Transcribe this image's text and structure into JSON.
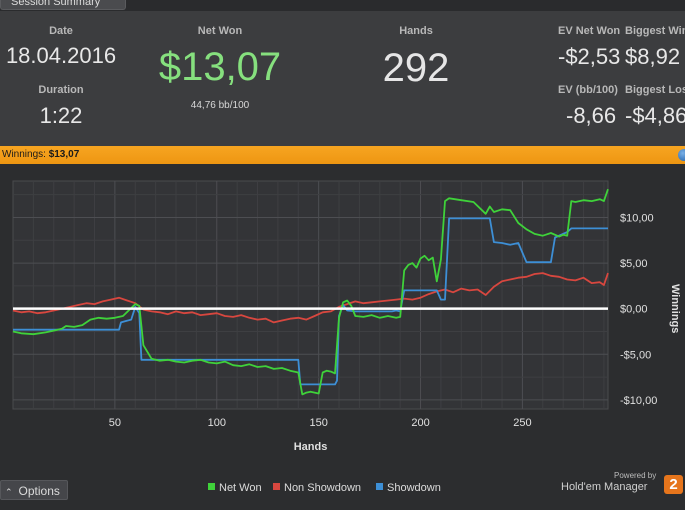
{
  "tab": {
    "label": "Session Summary"
  },
  "summary": {
    "date_label": "Date",
    "date_value": "18.04.2016",
    "duration_label": "Duration",
    "duration_value": "1:22",
    "netwon_label": "Net Won",
    "netwon_value": "$13,07",
    "netwon_sub": "44,76 bb/100",
    "hands_label": "Hands",
    "hands_value": "292",
    "ev_netwon_label": "EV Net Won",
    "ev_netwon_value": "-$2,53",
    "biggest_win_label": "Biggest Win",
    "biggest_win_value": "$8,92",
    "ev_bb_label": "EV (bb/100)",
    "ev_bb_value": "-8,66",
    "biggest_loss_label": "Biggest Loss",
    "biggest_loss_value": "-$4,86"
  },
  "winbar": {
    "label": "Winnings:",
    "value": "$13,07"
  },
  "colors": {
    "net_won": "#3fd23a",
    "non_showdown": "#d8473f",
    "showdown": "#3d8fd6",
    "accent": "#f5a01c"
  },
  "chart_data": {
    "type": "line",
    "xlabel": "Hands",
    "ylabel": "Winnings",
    "xlim": [
      0,
      292
    ],
    "ylim": [
      -11,
      14
    ],
    "x_ticks": [
      "50",
      "100",
      "150",
      "200",
      "250"
    ],
    "y_ticks": [
      "$10,00",
      "$5,00",
      "$0,00",
      "-$5,00",
      "-$10,00"
    ],
    "grid": true,
    "legend_position": "bottom-center",
    "series": [
      {
        "name": "Net Won",
        "x": [
          0,
          4,
          10,
          16,
          20,
          24,
          26,
          30,
          34,
          38,
          42,
          46,
          50,
          54,
          60,
          62,
          64,
          68,
          72,
          76,
          80,
          84,
          88,
          92,
          96,
          100,
          104,
          108,
          112,
          116,
          120,
          124,
          128,
          132,
          136,
          138,
          140,
          142,
          144,
          146,
          150,
          152,
          154,
          156,
          158,
          160,
          162,
          164,
          166,
          168,
          172,
          176,
          180,
          184,
          188,
          190,
          192,
          194,
          196,
          198,
          200,
          202,
          204,
          206,
          208,
          210,
          212,
          214,
          220,
          226,
          232,
          234,
          236,
          240,
          244,
          248,
          252,
          256,
          260,
          264,
          268,
          270,
          272,
          274,
          276,
          280,
          284,
          288,
          290,
          292
        ],
        "y": [
          -2.5,
          -2.7,
          -2.8,
          -2.6,
          -2.4,
          -2.2,
          -1.9,
          -2.0,
          -1.8,
          -1.2,
          -1.0,
          -1.1,
          -1.0,
          -0.8,
          0.5,
          0.3,
          -4.0,
          -5.5,
          -5.7,
          -5.6,
          -5.8,
          -5.9,
          -5.7,
          -5.6,
          -5.9,
          -6.0,
          -5.8,
          -6.2,
          -6.3,
          -6.1,
          -6.4,
          -6.3,
          -6.6,
          -6.5,
          -6.8,
          -6.9,
          -7.0,
          -9.4,
          -9.2,
          -9.1,
          -9.3,
          -7.0,
          -6.8,
          -6.9,
          -7.1,
          -1.0,
          0.7,
          0.9,
          0.3,
          -0.8,
          -0.9,
          -0.7,
          -1.0,
          -0.8,
          -1.0,
          -0.9,
          4.2,
          4.8,
          5.0,
          4.5,
          5.5,
          5.8,
          5.3,
          5.6,
          3.0,
          5.4,
          11.8,
          12.1,
          11.9,
          11.7,
          10.4,
          11.2,
          10.6,
          10.9,
          10.8,
          9.4,
          8.7,
          8.2,
          8.0,
          8.3,
          7.9,
          8.1,
          8.0,
          11.8,
          11.7,
          11.9,
          11.8,
          12.0,
          11.8,
          13.1
        ]
      },
      {
        "name": "Non Showdown",
        "x": [
          0,
          4,
          8,
          12,
          16,
          20,
          24,
          28,
          32,
          36,
          40,
          44,
          48,
          52,
          56,
          60,
          64,
          68,
          72,
          76,
          80,
          84,
          88,
          92,
          96,
          100,
          104,
          108,
          112,
          116,
          120,
          124,
          128,
          132,
          136,
          140,
          144,
          148,
          152,
          156,
          160,
          164,
          168,
          172,
          176,
          180,
          184,
          188,
          192,
          196,
          200,
          204,
          208,
          212,
          216,
          220,
          224,
          228,
          232,
          236,
          240,
          244,
          248,
          252,
          256,
          260,
          264,
          268,
          272,
          276,
          280,
          284,
          288,
          290,
          292
        ],
        "y": [
          -0.2,
          -0.4,
          -0.3,
          -0.5,
          -0.4,
          -0.2,
          0.0,
          0.2,
          0.4,
          0.6,
          0.5,
          0.8,
          1.0,
          1.2,
          0.9,
          0.6,
          -0.1,
          -0.3,
          -0.4,
          -0.6,
          -0.3,
          -0.5,
          -0.4,
          -0.7,
          -0.6,
          -0.5,
          -0.8,
          -0.9,
          -0.7,
          -1.0,
          -1.2,
          -1.1,
          -1.5,
          -1.3,
          -1.1,
          -1.0,
          -1.2,
          -0.8,
          -0.4,
          -0.3,
          0.2,
          0.5,
          0.8,
          0.6,
          0.7,
          0.8,
          0.9,
          1.0,
          1.1,
          1.0,
          1.2,
          1.6,
          1.9,
          2.1,
          1.8,
          2.2,
          2.0,
          2.1,
          1.5,
          2.4,
          3.0,
          3.2,
          3.4,
          3.5,
          3.8,
          3.9,
          3.6,
          3.5,
          3.2,
          3.1,
          3.4,
          2.8,
          2.9,
          2.6,
          3.9
        ]
      },
      {
        "name": "Showdown",
        "x": [
          0,
          52,
          53,
          58,
          60,
          62,
          63,
          140,
          141,
          158,
          159,
          160,
          162,
          164,
          168,
          186,
          188,
          190,
          192,
          208,
          210,
          212,
          214,
          234,
          236,
          240,
          244,
          248,
          252,
          264,
          266,
          272,
          274,
          292
        ],
        "y": [
          -2.3,
          -2.3,
          -1.5,
          -1.2,
          0.2,
          -0.5,
          -5.6,
          -5.6,
          -8.3,
          -8.3,
          -7.9,
          -0.8,
          0.4,
          -0.2,
          -0.3,
          -0.3,
          -0.2,
          -0.3,
          2.0,
          2.0,
          1.0,
          1.0,
          9.9,
          9.9,
          7.3,
          7.2,
          7.0,
          7.2,
          5.1,
          5.1,
          7.8,
          8.4,
          8.8,
          8.8
        ]
      }
    ]
  },
  "options": {
    "icon": "chevron-up-icon",
    "label": "Options"
  },
  "legend": {
    "items": [
      "Net Won",
      "Non Showdown",
      "Showdown"
    ]
  },
  "brand": {
    "powered_by": "Powered by",
    "name": "Hold'em Manager",
    "logo_text": "2"
  }
}
